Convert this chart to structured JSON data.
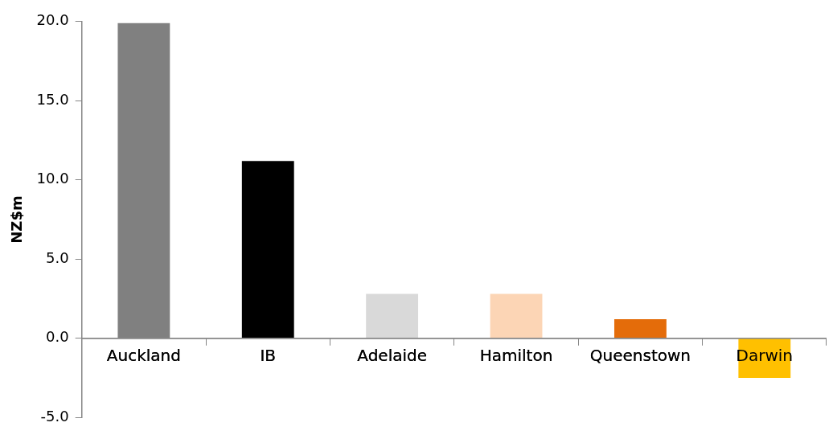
{
  "chart_data": {
    "type": "bar",
    "ylabel": "NZ$m",
    "categories": [
      "Auckland",
      "IB",
      "Adelaide",
      "Hamilton",
      "Queenstown",
      "Darwin"
    ],
    "values": [
      19.9,
      11.2,
      2.8,
      2.8,
      1.2,
      -2.5
    ],
    "colors": [
      "#808080",
      "#000000",
      "#d9d9d9",
      "#fcd5b5",
      "#e46c0a",
      "#ffc000"
    ],
    "ylim": [
      -5,
      20
    ],
    "yticks": [
      {
        "value": -5,
        "label": "-5.0"
      },
      {
        "value": 0,
        "label": "0.0"
      },
      {
        "value": 5,
        "label": "5.0"
      },
      {
        "value": 10,
        "label": "10.0"
      },
      {
        "value": 15,
        "label": "15.0"
      },
      {
        "value": 20,
        "label": "20.0"
      }
    ],
    "grid": false,
    "legend": false
  }
}
